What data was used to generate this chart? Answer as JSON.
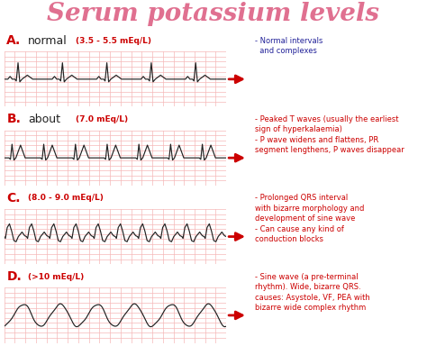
{
  "title": "Serum potassium levels",
  "title_color": "#e07090",
  "title_fontsize": 20,
  "background_color": "#ffffff",
  "ecg_color": "#222222",
  "grid_color": "#f5b8b8",
  "ecg_bg": "#fff5f5",
  "ecg_border": "#cc0000",
  "arrow_color": "#cc0000",
  "box_color": "#ffffff",
  "box_border": "#888888",
  "sections": [
    {
      "label": "A.",
      "label_color": "#cc0000",
      "description": "normal",
      "desc_color": "#222222",
      "range": "(3.5 - 5.5 mEq/L)",
      "range_color": "#cc0000",
      "ecg_type": "normal",
      "box_text": "- Normal intervals\n  and complexes",
      "box_text_color": "#222299"
    },
    {
      "label": "B.",
      "label_color": "#cc0000",
      "description": "about",
      "desc_color": "#222222",
      "range": "(7.0 mEq/L)",
      "range_color": "#cc0000",
      "ecg_type": "peaked",
      "box_text": "- Peaked T waves (usually the earliest\nsign of hyperkalaemia)\n- P wave widens and flattens, PR\nsegment lengthens, P waves disappear",
      "box_text_color": "#cc0000"
    },
    {
      "label": "C.",
      "label_color": "#cc0000",
      "description": "",
      "desc_color": "#222222",
      "range": "(8.0 - 9.0 mEq/L)",
      "range_color": "#cc0000",
      "ecg_type": "wide_qrs",
      "box_text": "- Prolonged QRS interval\nwith bizarre morphology and\ndevelopment of sine wave\n- Can cause any kind of\nconduction blocks",
      "box_text_color": "#cc0000"
    },
    {
      "label": "D.",
      "label_color": "#cc0000",
      "description": "",
      "desc_color": "#222222",
      "range": "(>10 mEq/L)",
      "range_color": "#cc0000",
      "ecg_type": "sine",
      "box_text": "- Sine wave (a pre-terminal\nrhythm). Wide, bizarre QRS.\ncauses: Asystole, VF, PEA with\nbizarre wide complex rhythm",
      "box_text_color": "#cc0000"
    }
  ]
}
